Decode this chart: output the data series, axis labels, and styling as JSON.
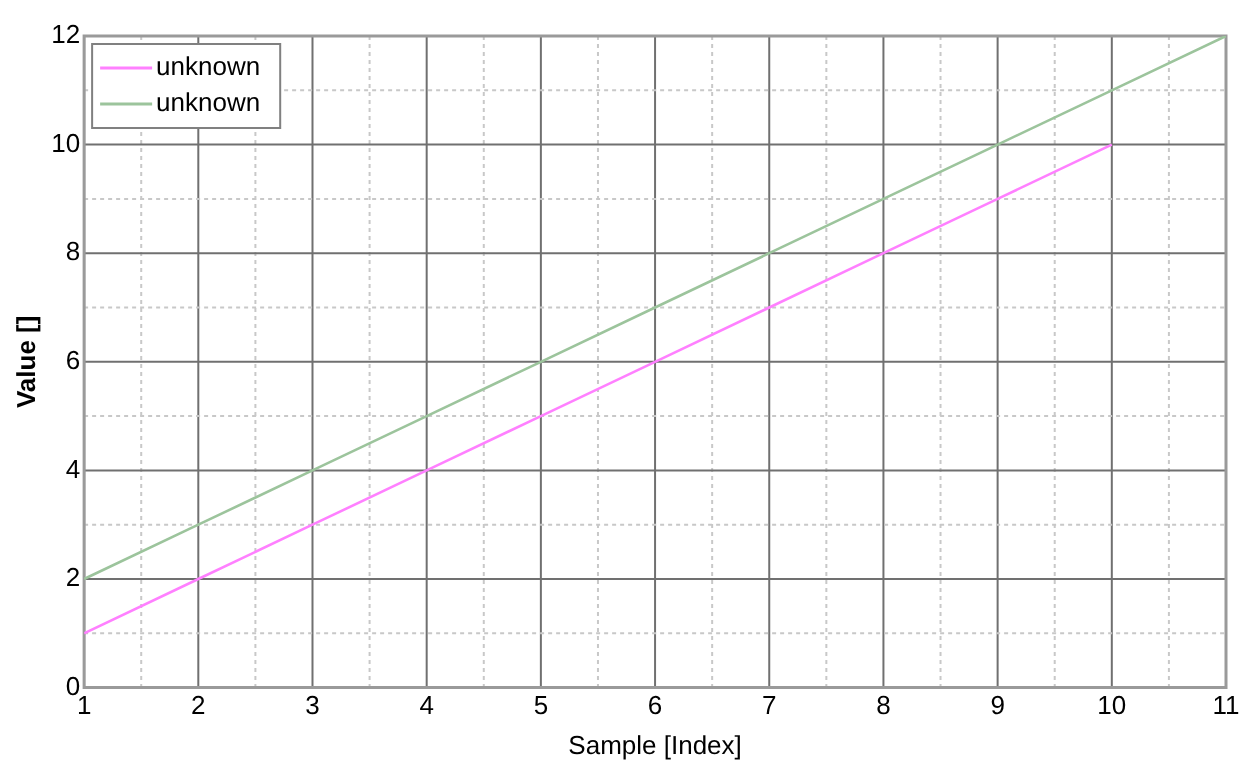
{
  "chart_data": {
    "type": "line",
    "xlabel": "Sample [Index]",
    "ylabel": "Value []",
    "series": [
      {
        "name": "unknown",
        "color": "#ff80ff",
        "x": [
          1,
          2,
          3,
          4,
          5,
          6,
          7,
          8,
          9,
          10
        ],
        "values": [
          1,
          2,
          3,
          4,
          5,
          6,
          7,
          8,
          9,
          10
        ]
      },
      {
        "name": "unknown",
        "color": "#9cc49c",
        "x": [
          1,
          2,
          3,
          4,
          5,
          6,
          7,
          8,
          9,
          10,
          11
        ],
        "values": [
          2,
          3,
          4,
          5,
          6,
          7,
          8,
          9,
          10,
          11,
          12
        ]
      }
    ],
    "xlim": [
      1,
      11
    ],
    "ylim": [
      0,
      12
    ],
    "xticks": [
      1,
      {
        "value": 1.5,
        "label": null
      },
      2,
      {
        "value": 2.5,
        "label": null
      },
      3,
      {
        "value": 3.5,
        "label": null
      },
      4,
      {
        "value": 4.5,
        "label": null
      },
      5,
      {
        "value": 5.5,
        "label": null
      },
      6,
      {
        "value": 6.5,
        "label": null
      },
      7,
      {
        "value": 7.5,
        "label": null
      },
      8,
      {
        "value": 8.5,
        "label": null
      },
      9,
      {
        "value": 9.5,
        "label": null
      },
      10,
      {
        "value": 10.5,
        "label": null
      },
      11
    ],
    "yticks": [
      0,
      {
        "value": 1,
        "label": null
      },
      2,
      {
        "value": 3,
        "label": null
      },
      4,
      {
        "value": 5,
        "label": null
      },
      6,
      {
        "value": 7,
        "label": null
      },
      8,
      {
        "value": 9,
        "label": null
      },
      10,
      {
        "value": 11,
        "label": null
      },
      12
    ],
    "grid": true,
    "legend": "top left",
    "marker": "none",
    "line_style": "solid"
  }
}
